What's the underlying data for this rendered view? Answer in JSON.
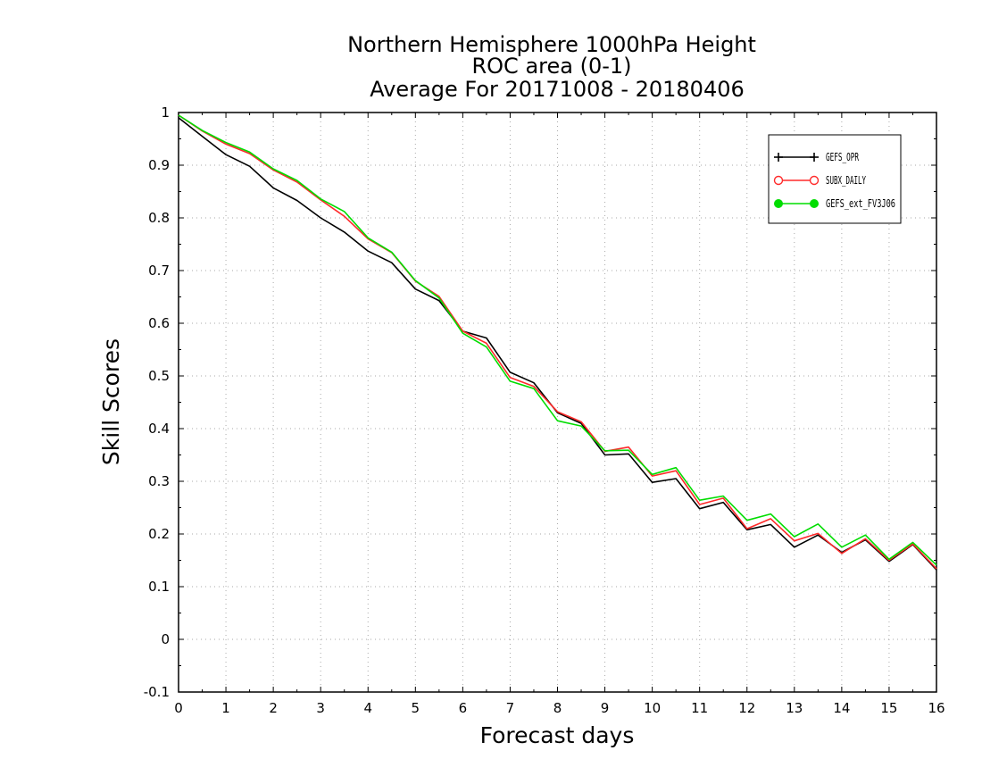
{
  "chart_data": {
    "type": "line",
    "title": [
      "Northern Hemisphere 1000hPa Height",
      "ROC area (0-1)",
      "Average For 20171008 - 20180406"
    ],
    "xlabel": "Forecast days",
    "ylabel": "Skill Scores",
    "xlim": [
      0,
      16
    ],
    "ylim": [
      -0.1,
      1
    ],
    "x_ticks": [
      0,
      1,
      2,
      3,
      4,
      5,
      6,
      7,
      8,
      9,
      10,
      11,
      12,
      13,
      14,
      15,
      16
    ],
    "y_ticks": [
      -0.1,
      0,
      0.1,
      0.2,
      0.3,
      0.4,
      0.5,
      0.6,
      0.7,
      0.8,
      0.9,
      1
    ],
    "y_tick_labels": [
      "-0.1",
      "0",
      "0.1",
      "0.2",
      "0.3",
      "0.4",
      "0.5",
      "0.6",
      "0.7",
      "0.8",
      "0.9",
      "1"
    ],
    "grid": true,
    "legend_position": "top-right",
    "x": [
      0,
      0.5,
      1,
      1.5,
      2,
      2.5,
      3,
      3.5,
      4,
      4.5,
      5,
      5.5,
      6,
      6.5,
      7,
      7.5,
      8,
      8.5,
      9,
      9.5,
      10,
      10.5,
      11,
      11.5,
      12,
      12.5,
      13,
      13.5,
      14,
      14.5,
      15,
      15.5,
      16
    ],
    "series": [
      {
        "name": "GEFS_OPR",
        "color": "#000000",
        "marker": "plus",
        "values": [
          0.99,
          0.955,
          0.92,
          0.898,
          0.857,
          0.833,
          0.8,
          0.773,
          0.737,
          0.715,
          0.665,
          0.643,
          0.585,
          0.572,
          0.507,
          0.487,
          0.43,
          0.41,
          0.35,
          0.352,
          0.298,
          0.305,
          0.248,
          0.26,
          0.208,
          0.218,
          0.175,
          0.198,
          0.165,
          0.189,
          0.148,
          0.18,
          0.132
        ]
      },
      {
        "name": "SUBX_DAILY",
        "color": "#ff2a2a",
        "marker": "open-circle",
        "values": [
          0.995,
          0.965,
          0.94,
          0.922,
          0.891,
          0.868,
          0.834,
          0.803,
          0.76,
          0.734,
          0.68,
          0.651,
          0.585,
          0.562,
          0.497,
          0.48,
          0.432,
          0.413,
          0.357,
          0.365,
          0.31,
          0.32,
          0.256,
          0.268,
          0.21,
          0.229,
          0.187,
          0.201,
          0.163,
          0.191,
          0.15,
          0.181,
          0.134
        ]
      },
      {
        "name": "GEFS_ext_FV3J06",
        "color": "#00dd00",
        "marker": "filled-circle",
        "values": [
          0.995,
          0.966,
          0.943,
          0.925,
          0.893,
          0.871,
          0.836,
          0.812,
          0.762,
          0.735,
          0.681,
          0.648,
          0.581,
          0.555,
          0.49,
          0.476,
          0.415,
          0.405,
          0.358,
          0.359,
          0.313,
          0.326,
          0.264,
          0.272,
          0.226,
          0.238,
          0.195,
          0.219,
          0.175,
          0.198,
          0.152,
          0.184,
          0.141
        ]
      }
    ]
  }
}
